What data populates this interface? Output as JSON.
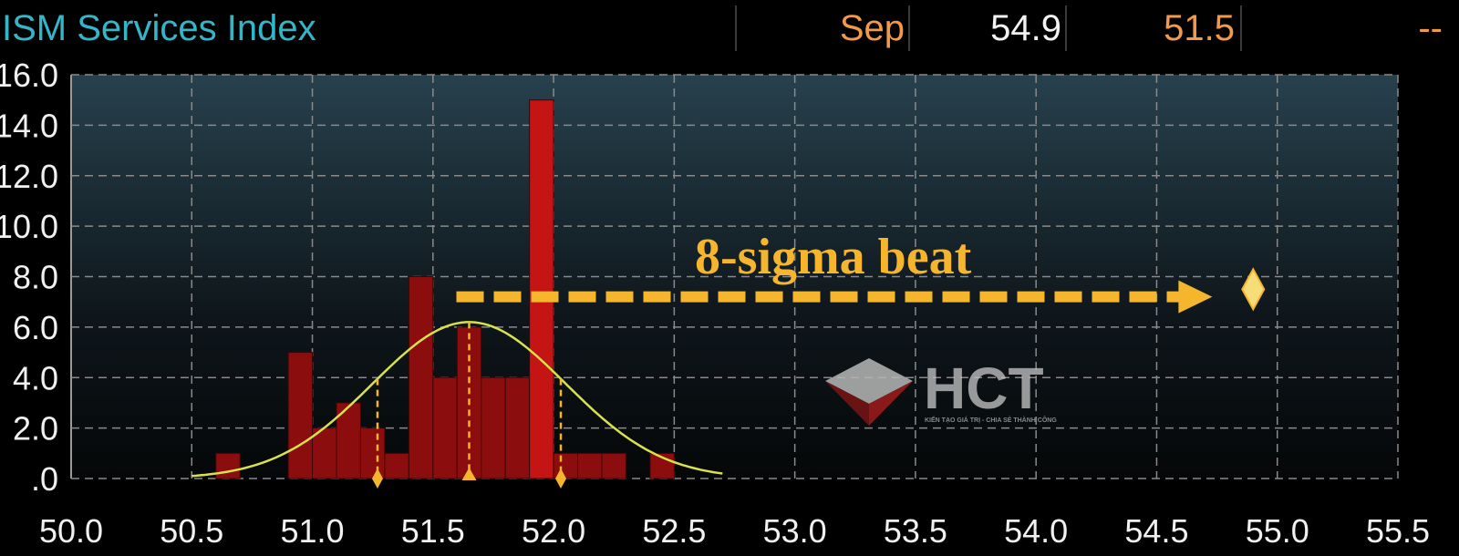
{
  "header": {
    "title": "ISM Services Index",
    "period": "Sep",
    "actual": "54.9",
    "survey": "51.5",
    "prior": "--"
  },
  "colors": {
    "bars": "#8c0d0d",
    "bar_highlight": "#c41414",
    "curve": "#d8e24a",
    "accent": "#f5b52c",
    "title": "#34b6c9",
    "grid": "#8a8a8a"
  },
  "watermark": {
    "brand": "HCT",
    "tagline": "KIẾN TẠO GIÁ TRỊ - CHIA SẺ THÀNH CÔNG"
  },
  "chart_data": {
    "type": "bar",
    "title": "ISM Services Index",
    "xlim": [
      50.0,
      55.5
    ],
    "ylim": [
      0,
      16
    ],
    "x_ticks": [
      "50.0",
      "50.5",
      "51.0",
      "51.5",
      "52.0",
      "52.5",
      "53.0",
      "53.5",
      "54.0",
      "54.5",
      "55.0",
      "55.5"
    ],
    "y_ticks": [
      ".0",
      "2.0",
      "4.0",
      "6.0",
      "8.0",
      "10.0",
      "12.0",
      "14.0",
      "16.0"
    ],
    "bin_width": 0.1,
    "bars": [
      {
        "x": 50.6,
        "value": 1
      },
      {
        "x": 50.9,
        "value": 5
      },
      {
        "x": 51.0,
        "value": 2
      },
      {
        "x": 51.1,
        "value": 3
      },
      {
        "x": 51.2,
        "value": 2
      },
      {
        "x": 51.3,
        "value": 1
      },
      {
        "x": 51.4,
        "value": 8
      },
      {
        "x": 51.5,
        "value": 4
      },
      {
        "x": 51.6,
        "value": 6
      },
      {
        "x": 51.7,
        "value": 4
      },
      {
        "x": 51.8,
        "value": 4
      },
      {
        "x": 51.9,
        "value": 15
      },
      {
        "x": 52.0,
        "value": 1
      },
      {
        "x": 52.1,
        "value": 1
      },
      {
        "x": 52.2,
        "value": 1
      },
      {
        "x": 52.4,
        "value": 1
      }
    ],
    "normal_curve": {
      "mean": 51.65,
      "sd": 0.4,
      "peak": 6.2,
      "x_range": [
        50.5,
        52.7
      ]
    },
    "markers": [
      {
        "x": 51.27,
        "shape": "diamond"
      },
      {
        "x": 51.65,
        "shape": "triangle"
      },
      {
        "x": 52.03,
        "shape": "diamond"
      }
    ],
    "annotation": {
      "text": "8-sigma beat",
      "arrow_from_x": 51.65,
      "arrow_to_x": 54.7,
      "arrow_y": 7.2
    },
    "actual_marker": {
      "x": 54.9,
      "y": 7.5,
      "shape": "diamond"
    }
  }
}
